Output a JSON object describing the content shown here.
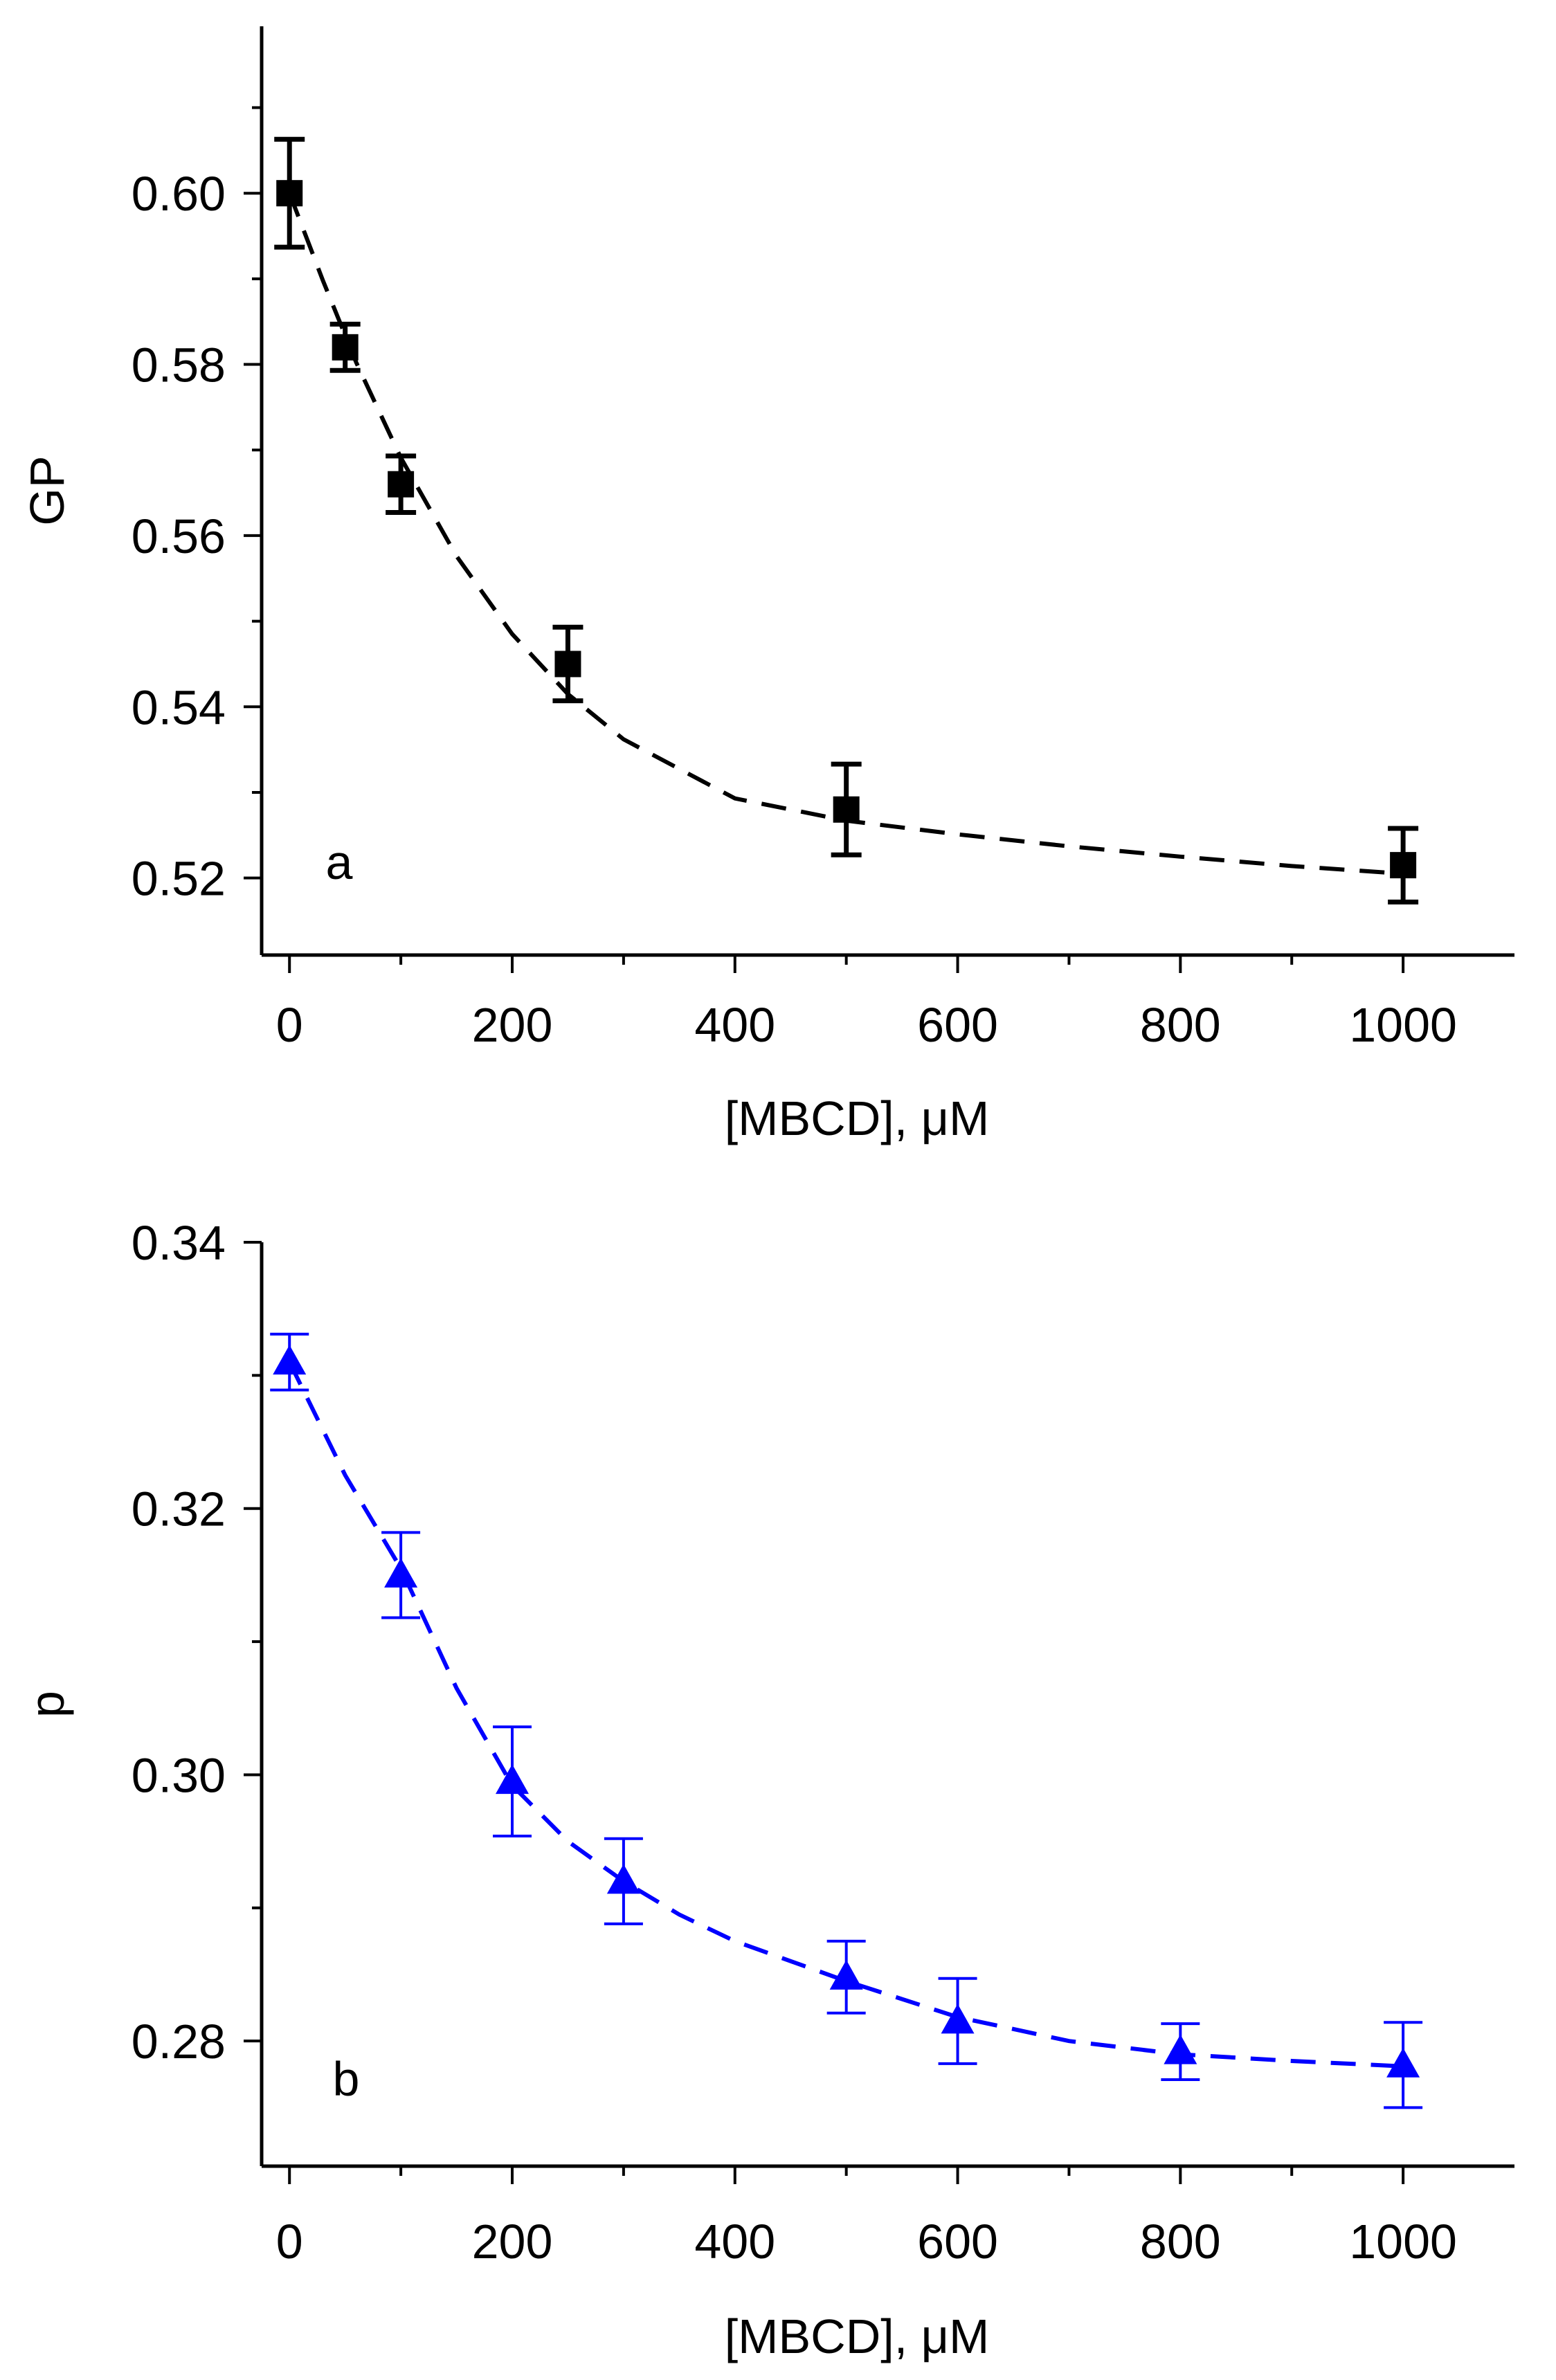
{
  "chart_data": [
    {
      "type": "scatter",
      "panel_label": "a",
      "title": "",
      "xlabel": "[MBCD], μM",
      "ylabel": "GP",
      "xlim": [
        -25,
        1100
      ],
      "ylim": [
        0.511,
        0.6195
      ],
      "xticks": [
        0,
        200,
        400,
        600,
        800,
        1000
      ],
      "xtick_labels": [
        "0",
        "200",
        "400",
        "600",
        "800",
        "1000"
      ],
      "yticks": [
        0.52,
        0.54,
        0.56,
        0.58,
        0.6
      ],
      "ytick_labels": [
        "0.52",
        "0.54",
        "0.56",
        "0.58",
        "0.60"
      ],
      "grid": false,
      "color": "#000000",
      "marker": "square",
      "fit_line": "dashed",
      "series": [
        {
          "name": "GP",
          "x": [
            0,
            50,
            100,
            250,
            500,
            1000
          ],
          "y": [
            0.6,
            0.582,
            0.566,
            0.545,
            0.528,
            0.5215
          ],
          "err": [
            0.0063,
            0.0027,
            0.0033,
            0.0043,
            0.0053,
            0.0043
          ]
        }
      ],
      "fit": {
        "x": [
          0,
          30,
          60,
          100,
          150,
          200,
          250,
          300,
          400,
          500,
          600,
          700,
          800,
          900,
          1000
        ],
        "y": [
          0.6,
          0.5898,
          0.5802,
          0.5691,
          0.5576,
          0.5485,
          0.5415,
          0.5362,
          0.5293,
          0.5267,
          0.5251,
          0.5237,
          0.5225,
          0.5214,
          0.5205
        ]
      }
    },
    {
      "type": "scatter",
      "panel_label": "b",
      "title": "",
      "xlabel": "[MBCD], μM",
      "ylabel": "p",
      "xlim": [
        -25,
        1100
      ],
      "ylim": [
        0.2706,
        0.34
      ],
      "xticks": [
        0,
        200,
        400,
        600,
        800,
        1000
      ],
      "xtick_labels": [
        "0",
        "200",
        "400",
        "600",
        "800",
        "1000"
      ],
      "yticks": [
        0.28,
        0.3,
        0.32,
        0.34
      ],
      "ytick_labels": [
        "0.28",
        "0.30",
        "0.32",
        "0.34"
      ],
      "grid": false,
      "color": "#0000ff",
      "marker": "triangle",
      "fit_line": "dashed",
      "series": [
        {
          "name": "p",
          "x": [
            0,
            100,
            200,
            300,
            500,
            600,
            800,
            1000
          ],
          "y": [
            0.331,
            0.315,
            0.2995,
            0.292,
            0.2848,
            0.2815,
            0.2792,
            0.2782
          ],
          "err": [
            0.0021,
            0.0032,
            0.0041,
            0.0032,
            0.0027,
            0.0032,
            0.0021,
            0.0032
          ]
        }
      ],
      "fit": {
        "x": [
          0,
          50,
          100,
          150,
          200,
          250,
          300,
          350,
          400,
          500,
          600,
          700,
          800,
          900,
          1000
        ],
        "y": [
          0.331,
          0.3225,
          0.3155,
          0.3065,
          0.2992,
          0.295,
          0.292,
          0.2895,
          0.2875,
          0.2845,
          0.2818,
          0.28,
          0.279,
          0.2785,
          0.2781
        ]
      }
    }
  ]
}
